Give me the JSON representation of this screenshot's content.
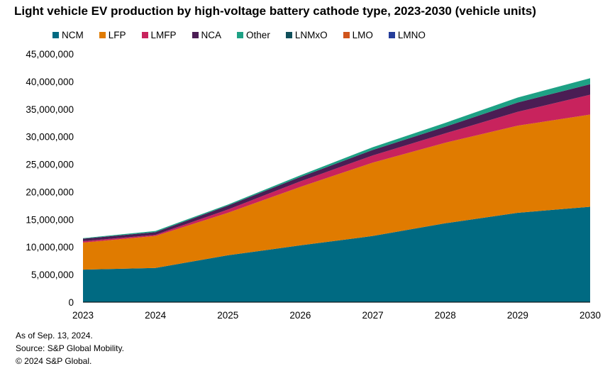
{
  "chart_data": {
    "type": "area",
    "stacked": true,
    "title": "Light vehicle EV production by high-voltage battery cathode type, 2023-2030 (vehicle units)",
    "x": [
      "2023",
      "2024",
      "2025",
      "2026",
      "2027",
      "2028",
      "2029",
      "2030"
    ],
    "ylim": [
      0,
      45000000
    ],
    "yticks": [
      0,
      5000000,
      10000000,
      15000000,
      20000000,
      25000000,
      30000000,
      35000000,
      40000000,
      45000000
    ],
    "ytick_labels": [
      "0",
      "5,000,000",
      "10,000,000",
      "15,000,000",
      "20,000,000",
      "25,000,000",
      "30,000,000",
      "35,000,000",
      "40,000,000",
      "45,000,000"
    ],
    "grid": false,
    "legend_position": "top",
    "series": [
      {
        "name": "NCM",
        "color": "#006a82",
        "values": [
          5900000,
          6200000,
          8500000,
          10300000,
          12000000,
          14300000,
          16200000,
          17300000
        ]
      },
      {
        "name": "LFP",
        "color": "#e07b00",
        "values": [
          4900000,
          5800000,
          7700000,
          10600000,
          13300000,
          14600000,
          15800000,
          16700000
        ]
      },
      {
        "name": "LMFP",
        "color": "#c8235d",
        "values": [
          250000,
          200000,
          600000,
          1000000,
          1300000,
          1700000,
          2500000,
          3600000
        ]
      },
      {
        "name": "NCA",
        "color": "#4b1d54",
        "values": [
          450000,
          500000,
          700000,
          800000,
          1000000,
          1200000,
          1700000,
          1900000
        ]
      },
      {
        "name": "Other",
        "color": "#1ea185",
        "values": [
          100000,
          200000,
          200000,
          300000,
          500000,
          700000,
          900000,
          1100000
        ]
      },
      {
        "name": "LNMxO",
        "color": "#0f4f5a",
        "values": [
          0,
          0,
          0,
          0,
          0,
          0,
          0,
          0
        ]
      },
      {
        "name": "LMO",
        "color": "#d0541b",
        "values": [
          0,
          0,
          0,
          0,
          0,
          0,
          0,
          0
        ]
      },
      {
        "name": "LMNO",
        "color": "#253d9a",
        "values": [
          0,
          0,
          0,
          0,
          0,
          0,
          0,
          0
        ]
      }
    ]
  },
  "footnotes": {
    "date": "As of Sep. 13, 2024.",
    "source": "Source: S&P Global Mobility.",
    "copyright": "© 2024 S&P Global."
  }
}
